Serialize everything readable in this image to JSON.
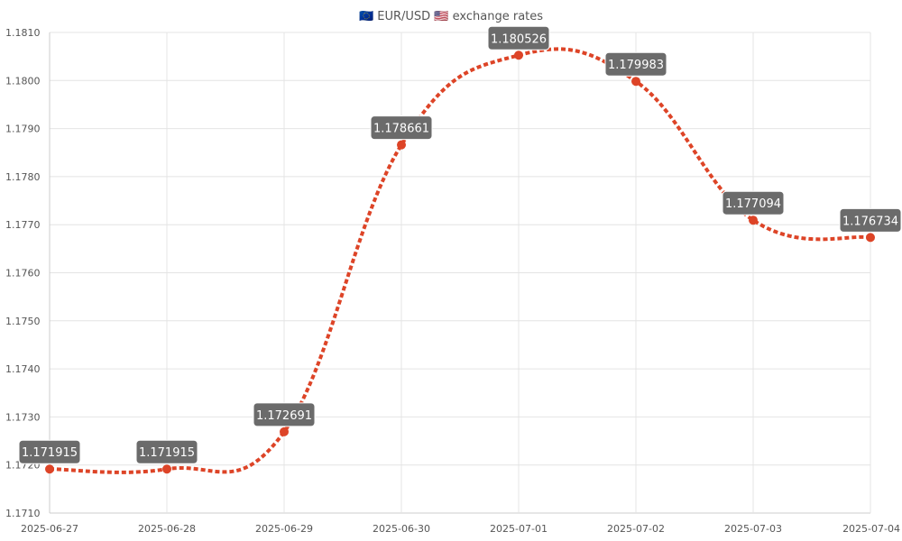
{
  "chart_data": {
    "type": "line",
    "title": "🇪🇺 EUR/USD 🇺🇸 exchange rates",
    "xlabel": "",
    "ylabel": "",
    "x": [
      "2025-06-27",
      "2025-06-28",
      "2025-06-29",
      "2025-06-30",
      "2025-07-01",
      "2025-07-02",
      "2025-07-03",
      "2025-07-04"
    ],
    "series": [
      {
        "values": [
          1.171915,
          1.171915,
          1.172691,
          1.178661,
          1.180526,
          1.179983,
          1.177094,
          1.176734
        ],
        "labels": [
          "1.171915",
          "1.171915",
          "1.172691",
          "1.178661",
          "1.180526",
          "1.179983",
          "1.177094",
          "1.176734"
        ],
        "color": "#dd4427"
      }
    ],
    "ylim": [
      1.171,
      1.181
    ],
    "yticks": [
      "1.1710",
      "1.1720",
      "1.1730",
      "1.1740",
      "1.1750",
      "1.1760",
      "1.1770",
      "1.1780",
      "1.1790",
      "1.1800",
      "1.1810"
    ],
    "grid": true,
    "line_style": "dotted",
    "curve": "smooth",
    "label_box_color": "#6b6b6b"
  }
}
